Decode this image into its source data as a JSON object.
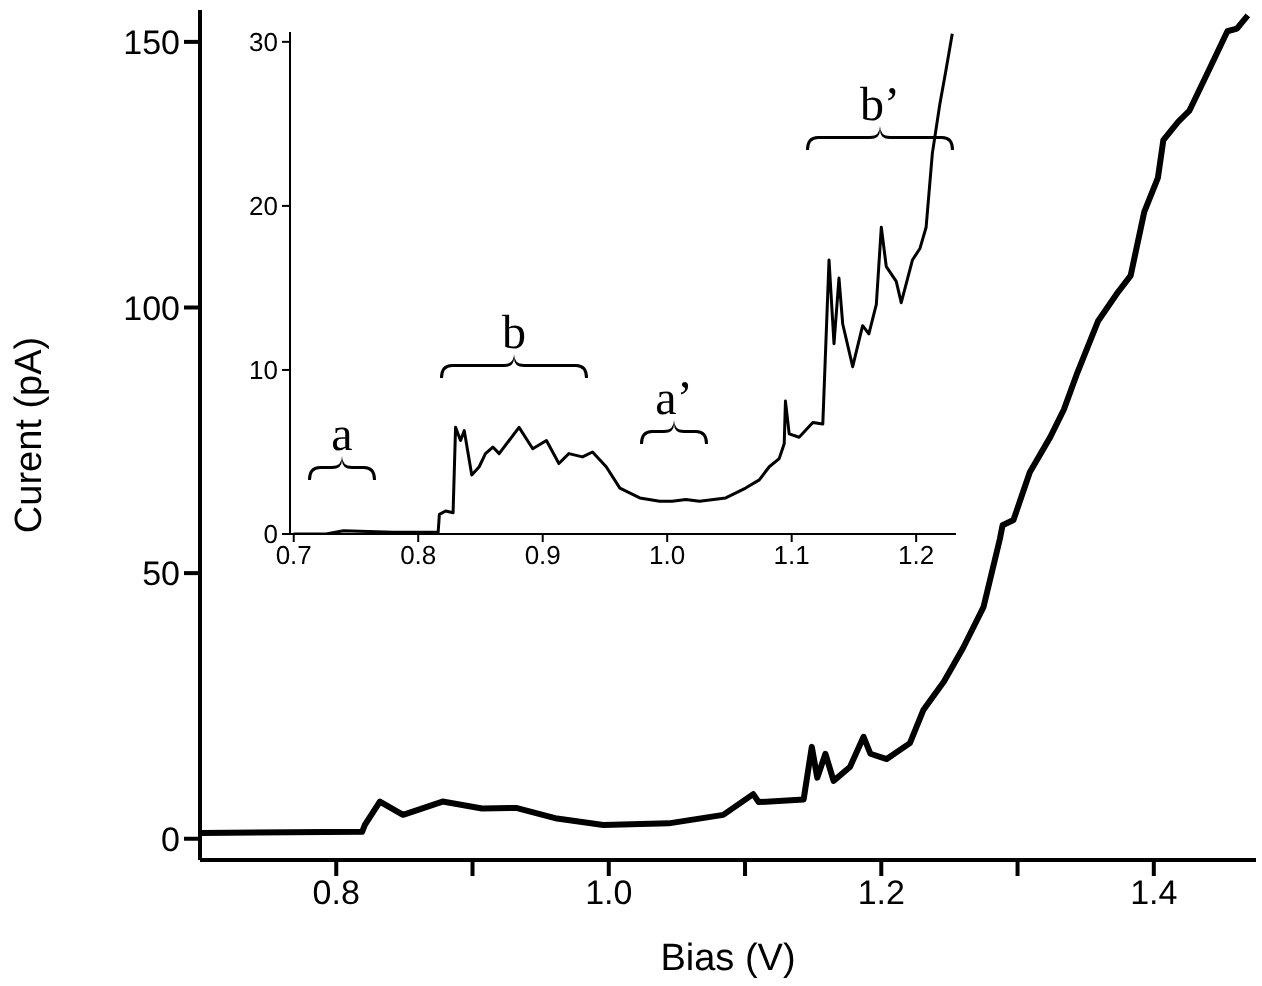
{
  "chart_data": [
    {
      "type": "line",
      "xlabel": "Bias (V)",
      "ylabel": "Curent (pA)",
      "xlim": [
        0.7,
        1.475
      ],
      "ylim": [
        -4,
        156
      ],
      "xticks": [
        0.8,
        {
          "value": 0.9,
          "label": null
        },
        {
          "value": 1,
          "label": "1.0"
        },
        {
          "value": 1.1,
          "label": null
        },
        1.2,
        {
          "value": 1.3,
          "label": null
        },
        1.4
      ],
      "yticks": [
        0,
        50,
        100,
        150
      ],
      "series": [
        {
          "color": "#000000",
          "x": [
            0.701,
            0.819,
            0.821,
            0.832,
            0.849,
            0.878,
            0.907,
            0.932,
            0.962,
            0.996,
            1.044,
            1.084,
            1.106,
            1.11,
            1.143,
            1.149,
            1.153,
            1.159,
            1.165,
            1.177,
            1.187,
            1.192,
            1.204,
            1.221,
            1.231,
            1.246,
            1.26,
            1.275,
            1.287,
            1.289,
            1.297,
            1.309,
            1.324,
            1.334,
            1.344,
            1.359,
            1.374,
            1.383,
            1.393,
            1.403,
            1.407,
            1.418,
            1.426,
            1.441,
            1.454,
            1.461,
            1.469
          ],
          "values": [
            1.1,
            1.3,
            2.6,
            7,
            4.5,
            7,
            5.7,
            5.8,
            3.8,
            2.6,
            2.9,
            4.5,
            8.4,
            6.9,
            7.4,
            17.3,
            11.5,
            16,
            10.9,
            13.5,
            19.2,
            16,
            15,
            18,
            24.3,
            29.6,
            35.9,
            43.6,
            56.4,
            59,
            60,
            69,
            75.6,
            80.8,
            87.8,
            97.4,
            103,
            106,
            118,
            124.4,
            131.5,
            135,
            137,
            145,
            152,
            152.5,
            155
          ]
        }
      ]
    },
    {
      "type": "line",
      "xlim": [
        0.697,
        1.232
      ],
      "ylim": [
        0,
        30.6
      ],
      "xticks": [
        0.7,
        0.8,
        0.9,
        {
          "value": 1,
          "label": "1.0"
        },
        1.1,
        1.2
      ],
      "yticks": [
        0,
        10,
        20,
        30
      ],
      "annotations": [
        "a",
        "b",
        "a’",
        "b’"
      ],
      "series": [
        {
          "color": "#000000",
          "x": [
            0.7,
            0.726,
            0.74,
            0.78,
            0.816,
            0.817,
            0.822,
            0.828,
            0.83,
            0.834,
            0.837,
            0.843,
            0.849,
            0.854,
            0.86,
            0.865,
            0.873,
            0.881,
            0.892,
            0.903,
            0.913,
            0.921,
            0.932,
            0.94,
            0.951,
            0.962,
            0.978,
            0.994,
            1.004,
            1.015,
            1.026,
            1.047,
            1.063,
            1.074,
            1.082,
            1.09,
            1.094,
            1.095,
            1.098,
            1.106,
            1.117,
            1.125,
            1.13,
            1.134,
            1.138,
            1.141,
            1.149,
            1.157,
            1.162,
            1.168,
            1.172,
            1.176,
            1.184,
            1.188,
            1.197,
            1.203,
            1.208,
            1.213,
            1.219,
            1.224,
            1.229
          ],
          "values": [
            0,
            0,
            0.2,
            0.1,
            0.1,
            1.2,
            1.4,
            1.3,
            6.5,
            5.7,
            6.3,
            3.6,
            4.1,
            4.9,
            5.3,
            4.9,
            5.7,
            6.5,
            5.2,
            5.7,
            4.3,
            4.9,
            4.7,
            5.0,
            4.1,
            2.8,
            2.2,
            2.0,
            2.0,
            2.1,
            2.0,
            2.2,
            2.8,
            3.3,
            4.1,
            4.6,
            5.5,
            8.1,
            6.1,
            5.9,
            6.8,
            6.7,
            16.7,
            11.6,
            15.6,
            12.8,
            10.2,
            12.7,
            12.2,
            14.0,
            18.7,
            16.3,
            15.4,
            14.1,
            16.7,
            17.4,
            18.7,
            23.2,
            26.2,
            28.3,
            30.5
          ]
        }
      ]
    }
  ]
}
